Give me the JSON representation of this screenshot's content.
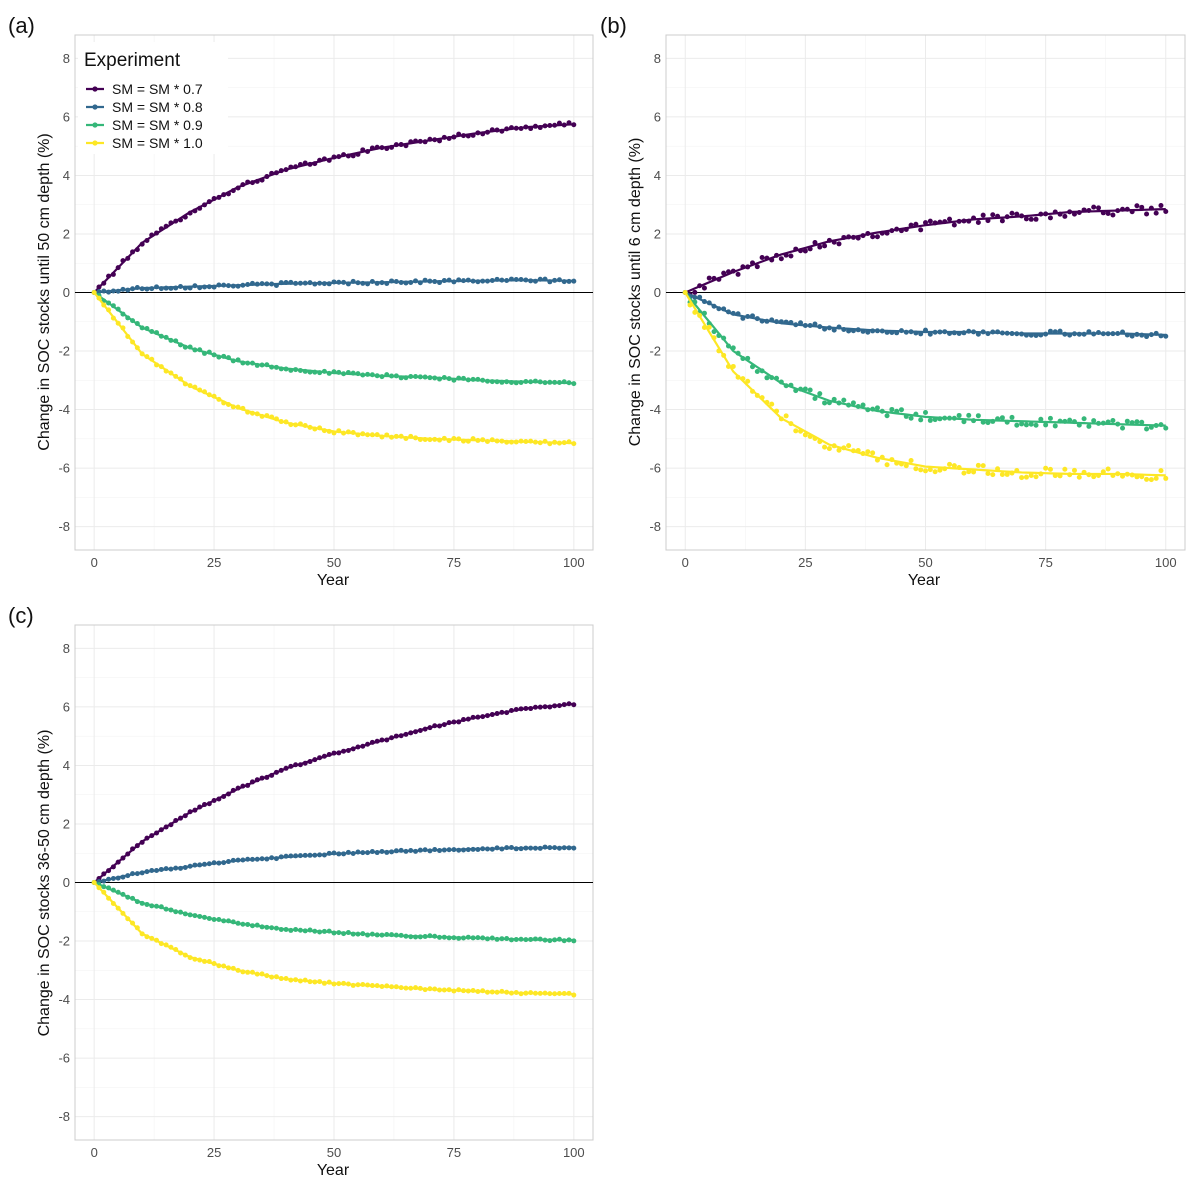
{
  "colors": {
    "sm07": "#440154",
    "sm08": "#31688e",
    "sm09": "#35b779",
    "sm10": "#fde725",
    "zero_line": "#000000",
    "grid": "#ebebeb",
    "panel_border": "#cccccc"
  },
  "legend": {
    "title": "Experiment",
    "entries": [
      "SM = SM * 0.7",
      "SM = SM * 0.8",
      "SM = SM * 0.9",
      "SM = SM * 1.0"
    ]
  },
  "chart_data": [
    {
      "type": "line",
      "panel_label": "(a)",
      "xlabel": "Year",
      "ylabel": "Change in SOC stocks until 50 cm depth (%)",
      "xlim": [
        -4,
        104
      ],
      "ylim": [
        -8.8,
        8.8
      ],
      "xticks": [
        0,
        25,
        50,
        75,
        100
      ],
      "yticks": [
        -8,
        -6,
        -4,
        -2,
        0,
        2,
        4,
        6,
        8
      ],
      "x": [
        0,
        10,
        20,
        30,
        40,
        50,
        60,
        70,
        80,
        90,
        100
      ],
      "series": [
        {
          "name": "SM = SM * 0.7",
          "color_key": "sm07",
          "noise": 0.07,
          "values": [
            0,
            1.7,
            2.75,
            3.6,
            4.2,
            4.6,
            4.95,
            5.2,
            5.45,
            5.65,
            5.75
          ]
        },
        {
          "name": "SM = SM * 0.8",
          "color_key": "sm08",
          "noise": 0.05,
          "values": [
            0,
            0.15,
            0.2,
            0.25,
            0.3,
            0.33,
            0.35,
            0.38,
            0.4,
            0.42,
            0.4
          ]
        },
        {
          "name": "SM = SM * 0.9",
          "color_key": "sm09",
          "noise": 0.05,
          "values": [
            0,
            -1.2,
            -1.9,
            -2.35,
            -2.6,
            -2.75,
            -2.85,
            -2.9,
            -3.0,
            -3.05,
            -3.1
          ]
        },
        {
          "name": "SM = SM * 1.0",
          "color_key": "sm10",
          "noise": 0.05,
          "values": [
            0,
            -2.1,
            -3.2,
            -3.95,
            -4.45,
            -4.75,
            -4.9,
            -5.0,
            -5.05,
            -5.1,
            -5.15
          ]
        }
      ]
    },
    {
      "type": "line",
      "panel_label": "(b)",
      "xlabel": "Year",
      "ylabel": "Change in SOC stocks until 6 cm depth (%)",
      "xlim": [
        -4,
        104
      ],
      "ylim": [
        -8.8,
        8.8
      ],
      "xticks": [
        0,
        25,
        50,
        75,
        100
      ],
      "yticks": [
        -8,
        -6,
        -4,
        -2,
        0,
        2,
        4,
        6,
        8
      ],
      "x": [
        0,
        10,
        20,
        30,
        40,
        50,
        60,
        70,
        80,
        90,
        100
      ],
      "series": [
        {
          "name": "SM = SM * 0.7",
          "color_key": "sm07",
          "noise": 0.15,
          "values": [
            0,
            0.7,
            1.3,
            1.75,
            2.05,
            2.3,
            2.5,
            2.6,
            2.75,
            2.8,
            2.85
          ]
        },
        {
          "name": "SM = SM * 0.8",
          "color_key": "sm08",
          "noise": 0.08,
          "values": [
            0,
            -0.75,
            -1.05,
            -1.2,
            -1.3,
            -1.35,
            -1.35,
            -1.4,
            -1.4,
            -1.4,
            -1.45
          ]
        },
        {
          "name": "SM = SM * 0.9",
          "color_key": "sm09",
          "noise": 0.15,
          "values": [
            0,
            -2.0,
            -3.1,
            -3.7,
            -4.05,
            -4.25,
            -4.35,
            -4.4,
            -4.45,
            -4.5,
            -4.55
          ]
        },
        {
          "name": "SM = SM * 1.0",
          "color_key": "sm10",
          "noise": 0.18,
          "values": [
            0,
            -2.7,
            -4.3,
            -5.2,
            -5.65,
            -5.95,
            -6.05,
            -6.15,
            -6.2,
            -6.2,
            -6.25
          ]
        }
      ]
    },
    {
      "type": "line",
      "panel_label": "(c)",
      "xlabel": "Year",
      "ylabel": "Change in SOC stocks 36-50 cm depth (%)",
      "xlim": [
        -4,
        104
      ],
      "ylim": [
        -8.8,
        8.8
      ],
      "xticks": [
        0,
        25,
        50,
        75,
        100
      ],
      "yticks": [
        -8,
        -6,
        -4,
        -2,
        0,
        2,
        4,
        6,
        8
      ],
      "x": [
        0,
        10,
        20,
        30,
        40,
        50,
        60,
        70,
        80,
        90,
        100
      ],
      "series": [
        {
          "name": "SM = SM * 0.7",
          "color_key": "sm07",
          "noise": 0.03,
          "values": [
            0,
            1.4,
            2.4,
            3.2,
            3.9,
            4.4,
            4.85,
            5.3,
            5.65,
            5.95,
            6.1
          ]
        },
        {
          "name": "SM = SM * 0.8",
          "color_key": "sm08",
          "noise": 0.03,
          "values": [
            0,
            0.35,
            0.55,
            0.75,
            0.87,
            0.98,
            1.05,
            1.1,
            1.15,
            1.18,
            1.2
          ]
        },
        {
          "name": "SM = SM * 0.9",
          "color_key": "sm09",
          "noise": 0.03,
          "values": [
            0,
            -0.7,
            -1.1,
            -1.4,
            -1.6,
            -1.7,
            -1.8,
            -1.85,
            -1.9,
            -1.95,
            -1.97
          ]
        },
        {
          "name": "SM = SM * 1.0",
          "color_key": "sm10",
          "noise": 0.03,
          "values": [
            0,
            -1.75,
            -2.55,
            -3.0,
            -3.3,
            -3.45,
            -3.55,
            -3.65,
            -3.72,
            -3.78,
            -3.82
          ]
        }
      ]
    }
  ]
}
